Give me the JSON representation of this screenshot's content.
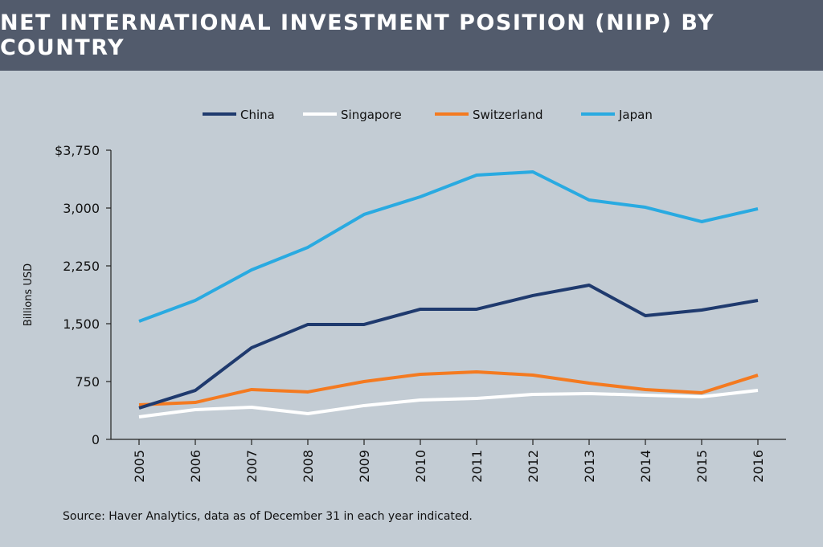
{
  "chart_data": {
    "type": "line",
    "title": "NET INTERNATIONAL INVESTMENT POSITION (NIIP) BY COUNTRY",
    "ylabel": "Billions USD",
    "xlabel": "",
    "ylim": [
      0,
      3750
    ],
    "yticks": [
      0,
      750,
      1500,
      2250,
      3000,
      3750
    ],
    "ytick_labels": [
      "0",
      "750",
      "1,500",
      "2,250",
      "3,000",
      "$3,750"
    ],
    "x": [
      "2005",
      "2006",
      "2007",
      "2008",
      "2009",
      "2010",
      "2011",
      "2012",
      "2013",
      "2014",
      "2015",
      "2016"
    ],
    "grid": false,
    "legend_placement": "top-center",
    "series": [
      {
        "name": "China",
        "color": "#1f3a6e",
        "values": [
          406,
          635,
          1188,
          1490,
          1490,
          1688,
          1688,
          1865,
          2000,
          1604,
          1677,
          1802
        ]
      },
      {
        "name": "Singapore",
        "color": "#ffffff",
        "values": [
          292,
          385,
          417,
          333,
          438,
          510,
          531,
          583,
          594,
          573,
          552,
          635
        ]
      },
      {
        "name": "Switzerland",
        "color": "#f47a20",
        "values": [
          448,
          479,
          646,
          615,
          750,
          844,
          875,
          833,
          729,
          646,
          604,
          833
        ]
      },
      {
        "name": "Japan",
        "color": "#29aae1",
        "values": [
          1531,
          1802,
          2198,
          2490,
          2917,
          3146,
          3427,
          3469,
          3104,
          3010,
          2823,
          2990
        ]
      }
    ]
  },
  "source": "Source: Haver Analytics, data as of December 31 in each year indicated."
}
